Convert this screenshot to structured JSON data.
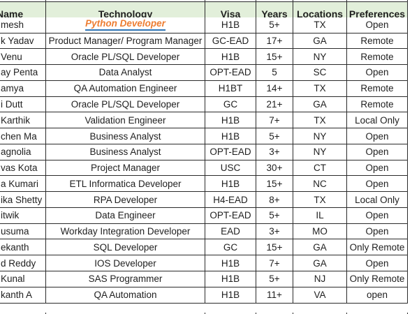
{
  "colors": {
    "header_bg": "#e2efda",
    "border": "#2b2b2b",
    "text": "#1f1f1f",
    "link_orange": "#ed7d31",
    "link_underline": "#2e75b6"
  },
  "table": {
    "headers": [
      "Name",
      "Technology",
      "Visa",
      "Years",
      "Locations",
      "Preferences"
    ],
    "rows": [
      {
        "name": "mesh",
        "technology": "Python Developer",
        "visa": "H1B",
        "years": "5+",
        "locations": "TX",
        "preferences": "Open",
        "tech_link": true
      },
      {
        "name": "k Yadav",
        "technology": "Product Manager/ Program Manager",
        "visa": "GC-EAD",
        "years": "17+",
        "locations": "GA",
        "preferences": "Remote"
      },
      {
        "name": "Venu",
        "technology": "Oracle PL/SQL Developer",
        "visa": "H1B",
        "years": "15+",
        "locations": "NY",
        "preferences": "Remote"
      },
      {
        "name": "ay Penta",
        "technology": "Data Analyst",
        "visa": "OPT-EAD",
        "years": "5",
        "locations": "SC",
        "preferences": "Open"
      },
      {
        "name": "amya",
        "technology": "QA Automation Engineer",
        "visa": "H1BT",
        "years": "14+",
        "locations": "TX",
        "preferences": "Remote"
      },
      {
        "name": "i Dutt",
        "technology": "Oracle PL/SQL Developer",
        "visa": "GC",
        "years": "21+",
        "locations": "GA",
        "preferences": "Remote"
      },
      {
        "name": "Karthik",
        "technology": "Validation Engineer",
        "visa": "H1B",
        "years": "7+",
        "locations": "TX",
        "preferences": "Local Only"
      },
      {
        "name": "chen Ma",
        "technology": "Business Analyst",
        "visa": "H1B",
        "years": "5+",
        "locations": "NY",
        "preferences": "Open"
      },
      {
        "name": "agnolia",
        "technology": "Business Analyst",
        "visa": "OPT-EAD",
        "years": "3+",
        "locations": "NY",
        "preferences": "Open"
      },
      {
        "name": "vas Kota",
        "technology": "Project Manager",
        "visa": "USC",
        "years": "30+",
        "locations": "CT",
        "preferences": "Open"
      },
      {
        "name": "a Kumari",
        "technology": "ETL Informatica Developer",
        "visa": "H1B",
        "years": "15+",
        "locations": "NC",
        "preferences": "Open"
      },
      {
        "name": "ika Shetty",
        "technology": "RPA Developer",
        "visa": "H4-EAD",
        "years": "8+",
        "locations": "TX",
        "preferences": "Local Only"
      },
      {
        "name": "itwik",
        "technology": "Data Engineer",
        "visa": "OPT-EAD",
        "years": "5+",
        "locations": "IL",
        "preferences": "Open"
      },
      {
        "name": "usuma",
        "technology": "Workday Integration Developer",
        "visa": "EAD",
        "years": "3+",
        "locations": "MO",
        "preferences": "Open"
      },
      {
        "name": "ekanth",
        "technology": "SQL Developer",
        "visa": "GC",
        "years": "15+",
        "locations": "GA",
        "preferences": "Only Remote"
      },
      {
        "name": "d Reddy",
        "technology": "IOS Developer",
        "visa": "H1B",
        "years": "7+",
        "locations": "GA",
        "preferences": "Open"
      },
      {
        "name": "Kunal",
        "technology": "SAS Programmer",
        "visa": "H1B",
        "years": "5+",
        "locations": "NJ",
        "preferences": "Only Remote"
      },
      {
        "name": "kanth A",
        "technology": "QA Automation",
        "visa": "H1B",
        "years": "11+",
        "locations": "VA",
        "preferences": "open"
      }
    ]
  }
}
